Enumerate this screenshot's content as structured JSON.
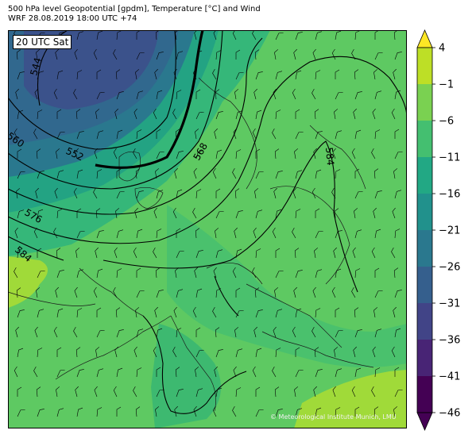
{
  "header": {
    "title_line1": "500 hPa level Geopotential [gpdm], Temperature [°C] and Wind",
    "title_line2": "WRF 28.08.2019 18:00 UTC +74"
  },
  "map": {
    "timestamp_label": "20 UTC Sat",
    "credit": "© Meteorological Institute Munich, LMU",
    "contour_labels": [
      "544",
      "552",
      "560",
      "568",
      "576",
      "584",
      "584"
    ]
  },
  "colorbar": {
    "ticks": [
      "4",
      "−1",
      "−6",
      "−11",
      "−16",
      "−21",
      "−26",
      "−31",
      "−36",
      "−41",
      "−46"
    ],
    "colors": [
      "#fde725",
      "#bddf26",
      "#7ad151",
      "#44bf70",
      "#22a884",
      "#21918c",
      "#2a788e",
      "#355f8d",
      "#414487",
      "#482475",
      "#440154"
    ]
  }
}
